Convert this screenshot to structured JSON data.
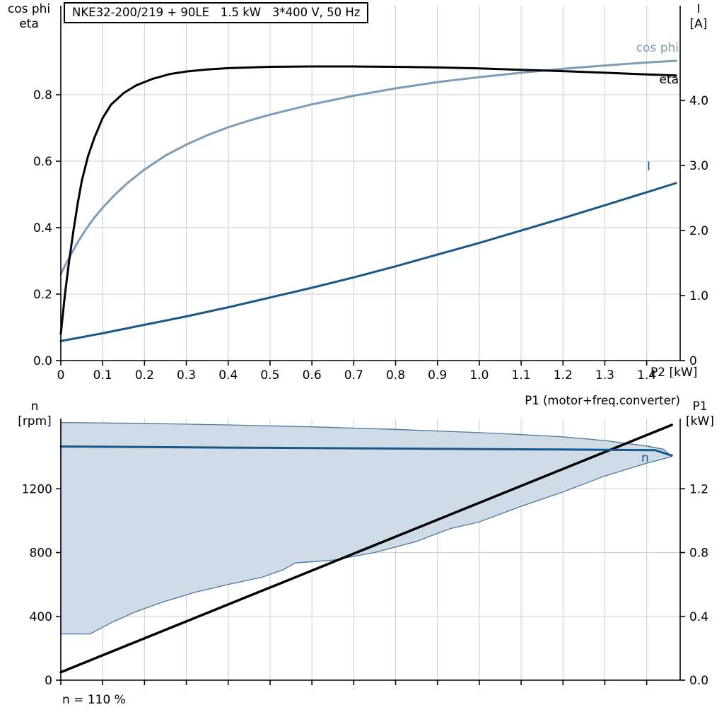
{
  "chart_data": [
    {
      "type": "line",
      "title": "NKE32-200/219 + 90LE   1.5 kW   3*400 V, 50 Hz",
      "xlabel": "P2 [kW]",
      "ylabel_left_line1": "cos phi",
      "ylabel_left_line2": "eta",
      "ylabel_right_line1": "I",
      "ylabel_right_line2": "[A]",
      "xlim": [
        0,
        1.48
      ],
      "xtick_values": [
        0,
        0.1,
        0.2,
        0.3,
        0.4,
        0.5,
        0.6,
        0.7,
        0.8,
        0.9,
        1.0,
        1.1,
        1.2,
        1.3,
        1.4
      ],
      "xtick_labels": [
        "0",
        "0.1",
        "0.2",
        "0.3",
        "0.4",
        "0.5",
        "0.6",
        "0.7",
        "0.8",
        "0.9",
        "1.0",
        "1.1",
        "1.2",
        "1.3",
        "1.4"
      ],
      "ylim_left": [
        0,
        1.068
      ],
      "ytick_values_left": [
        0,
        0.2,
        0.4,
        0.6,
        0.8
      ],
      "ytick_labels_left": [
        "0.0",
        "0.2",
        "0.4",
        "0.6",
        "0.8"
      ],
      "ylim_right": [
        0,
        5.46
      ],
      "ytick_values_right": [
        0,
        1,
        2,
        3,
        4
      ],
      "ytick_labels_right": [
        "0",
        "1.0",
        "2.0",
        "3.0",
        "4.0"
      ],
      "grid": true,
      "legend_position": "inline-right",
      "series": [
        {
          "name": "cos phi",
          "short": "cos phi",
          "axis": "left",
          "color": "#7d9cba",
          "width": 3,
          "points": [
            [
              0,
              0.26
            ],
            [
              0.02,
              0.31
            ],
            [
              0.04,
              0.355
            ],
            [
              0.06,
              0.395
            ],
            [
              0.08,
              0.43
            ],
            [
              0.1,
              0.46
            ],
            [
              0.13,
              0.5
            ],
            [
              0.16,
              0.535
            ],
            [
              0.2,
              0.575
            ],
            [
              0.25,
              0.617
            ],
            [
              0.3,
              0.65
            ],
            [
              0.35,
              0.678
            ],
            [
              0.4,
              0.702
            ],
            [
              0.45,
              0.722
            ],
            [
              0.5,
              0.74
            ],
            [
              0.6,
              0.771
            ],
            [
              0.7,
              0.797
            ],
            [
              0.8,
              0.819
            ],
            [
              0.9,
              0.838
            ],
            [
              1.0,
              0.853
            ],
            [
              1.1,
              0.866
            ],
            [
              1.2,
              0.878
            ],
            [
              1.3,
              0.888
            ],
            [
              1.4,
              0.897
            ],
            [
              1.47,
              0.902
            ]
          ]
        },
        {
          "name": "eta",
          "short": "eta",
          "axis": "left",
          "color": "#000000",
          "width": 3,
          "points": [
            [
              0,
              0.08
            ],
            [
              0.01,
              0.2
            ],
            [
              0.02,
              0.3
            ],
            [
              0.03,
              0.39
            ],
            [
              0.04,
              0.47
            ],
            [
              0.05,
              0.54
            ],
            [
              0.065,
              0.615
            ],
            [
              0.08,
              0.67
            ],
            [
              0.1,
              0.73
            ],
            [
              0.12,
              0.77
            ],
            [
              0.15,
              0.805
            ],
            [
              0.18,
              0.828
            ],
            [
              0.22,
              0.848
            ],
            [
              0.26,
              0.862
            ],
            [
              0.3,
              0.87
            ],
            [
              0.35,
              0.876
            ],
            [
              0.4,
              0.88
            ],
            [
              0.5,
              0.884
            ],
            [
              0.6,
              0.885
            ],
            [
              0.7,
              0.885
            ],
            [
              0.8,
              0.884
            ],
            [
              0.9,
              0.882
            ],
            [
              1.0,
              0.879
            ],
            [
              1.1,
              0.875
            ],
            [
              1.2,
              0.871
            ],
            [
              1.3,
              0.866
            ],
            [
              1.4,
              0.861
            ],
            [
              1.47,
              0.858
            ]
          ]
        },
        {
          "name": "I",
          "short": "I",
          "axis": "right",
          "color": "#1a5688",
          "width": 3,
          "points": [
            [
              0,
              0.3
            ],
            [
              0.1,
              0.42
            ],
            [
              0.2,
              0.55
            ],
            [
              0.3,
              0.68
            ],
            [
              0.4,
              0.82
            ],
            [
              0.5,
              0.97
            ],
            [
              0.6,
              1.12
            ],
            [
              0.7,
              1.28
            ],
            [
              0.8,
              1.45
            ],
            [
              0.9,
              1.63
            ],
            [
              1.0,
              1.81
            ],
            [
              1.1,
              2.0
            ],
            [
              1.2,
              2.19
            ],
            [
              1.3,
              2.39
            ],
            [
              1.4,
              2.59
            ],
            [
              1.47,
              2.73
            ]
          ]
        }
      ]
    },
    {
      "type": "line",
      "ylabel_left_line1": "n",
      "ylabel_left_line2": "[rpm]",
      "ylabel_right_line1": "P1",
      "ylabel_right_line2": "[kW]",
      "note": "n = 110 %",
      "xlim": [
        0,
        1.48
      ],
      "xtick_values": [
        0,
        0.1,
        0.2,
        0.3,
        0.4,
        0.5,
        0.6,
        0.7,
        0.8,
        0.9,
        1.0,
        1.1,
        1.2,
        1.3,
        1.4
      ],
      "xtick_labels": [],
      "ylim_left": [
        0,
        1640
      ],
      "ytick_values_left": [
        0,
        400,
        800,
        1200
      ],
      "ytick_labels_left": [
        "0",
        "400",
        "800",
        "1200"
      ],
      "ylim_right": [
        0,
        1.64
      ],
      "ytick_values_right": [
        0,
        0.4,
        0.8,
        1.2
      ],
      "ytick_labels_right": [
        "0.0",
        "0.4",
        "0.8",
        "1.2"
      ],
      "grid": true,
      "area": {
        "axis": "left",
        "fill": "#cfdbe7",
        "stroke": "#48779f",
        "upper": [
          [
            0,
            1615
          ],
          [
            0.2,
            1610
          ],
          [
            0.4,
            1600
          ],
          [
            0.6,
            1588
          ],
          [
            0.8,
            1572
          ],
          [
            1.0,
            1552
          ],
          [
            1.1,
            1540
          ],
          [
            1.2,
            1525
          ],
          [
            1.3,
            1502
          ],
          [
            1.4,
            1468
          ],
          [
            1.44,
            1448
          ],
          [
            1.46,
            1402
          ]
        ],
        "lower": [
          [
            0,
            290
          ],
          [
            0.07,
            290
          ],
          [
            0.12,
            360
          ],
          [
            0.18,
            430
          ],
          [
            0.25,
            495
          ],
          [
            0.32,
            550
          ],
          [
            0.4,
            600
          ],
          [
            0.48,
            645
          ],
          [
            0.53,
            690
          ],
          [
            0.56,
            735
          ],
          [
            0.65,
            752
          ],
          [
            0.75,
            800
          ],
          [
            0.85,
            870
          ],
          [
            0.93,
            950
          ],
          [
            1.0,
            992
          ],
          [
            1.1,
            1090
          ],
          [
            1.2,
            1180
          ],
          [
            1.3,
            1280
          ],
          [
            1.4,
            1360
          ],
          [
            1.46,
            1402
          ]
        ]
      },
      "series": [
        {
          "name": "P1 (motor+freq.converter)",
          "short": "P1",
          "axis": "right",
          "color": "#000000",
          "width": 3.5,
          "points": [
            [
              0,
              0.05
            ],
            [
              1.46,
              1.6
            ]
          ]
        },
        {
          "name": "n",
          "short": "n",
          "axis": "left",
          "color": "#1a5688",
          "width": 3,
          "points": [
            [
              0,
              1465
            ],
            [
              0.4,
              1458
            ],
            [
              0.8,
              1452
            ],
            [
              1.2,
              1446
            ],
            [
              1.42,
              1442
            ],
            [
              1.46,
              1408
            ]
          ]
        }
      ]
    }
  ]
}
